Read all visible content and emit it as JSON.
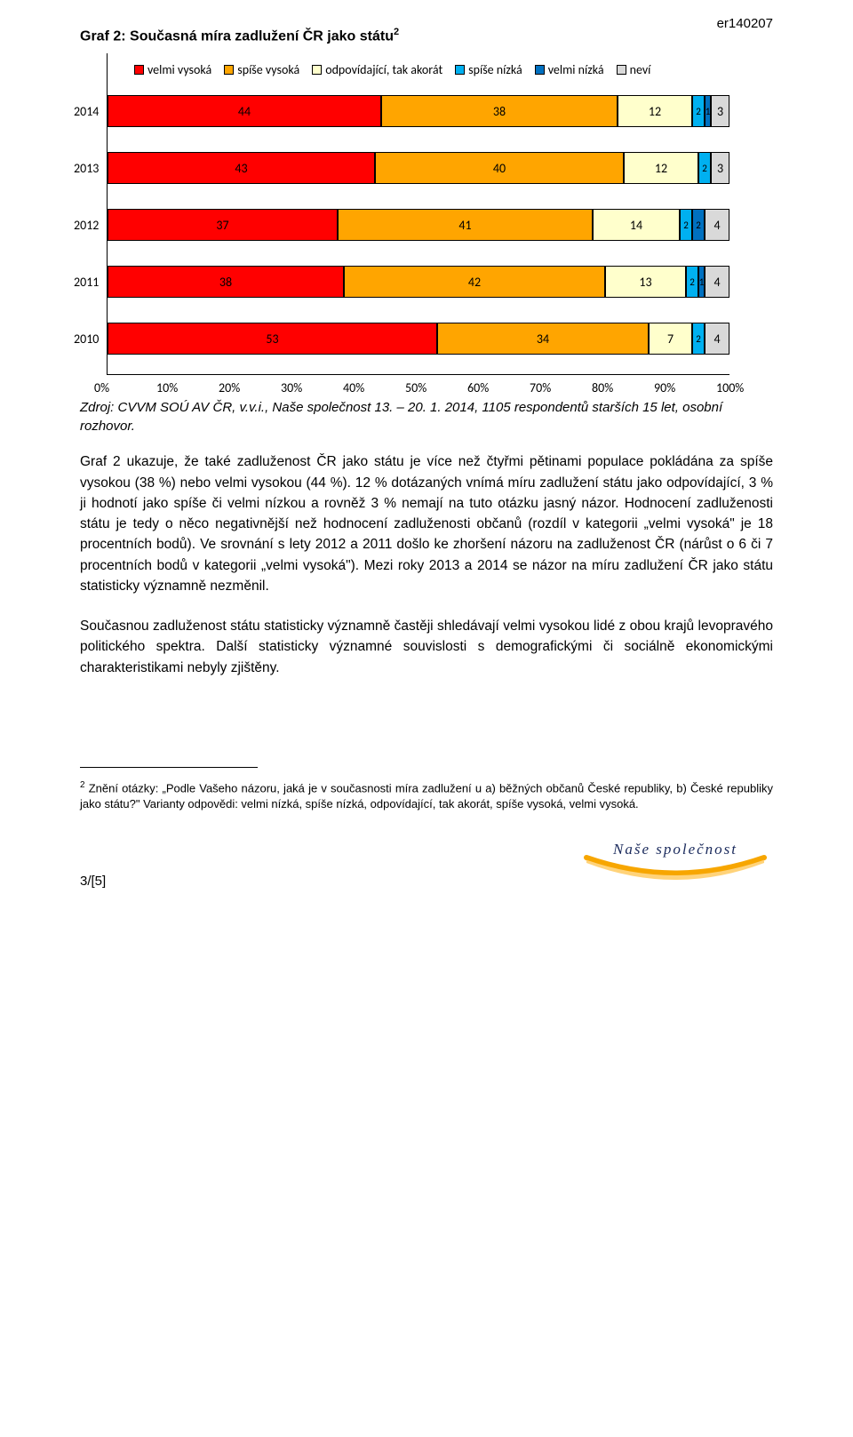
{
  "doc_id": "er140207",
  "chart": {
    "title": "Graf 2: Současná míra zadlužení ČR jako státu",
    "title_sup": "2",
    "legend": [
      {
        "label": "velmi vysoká",
        "color": "#ff0000"
      },
      {
        "label": "spíše vysoká",
        "color": "#ffa500"
      },
      {
        "label": "odpovídající, tak akorát",
        "color": "#ffffcc"
      },
      {
        "label": "spíše nízká",
        "color": "#00b0f0"
      },
      {
        "label": "velmi nízká",
        "color": "#0070c0"
      },
      {
        "label": "neví",
        "color": "#d9d9d9"
      }
    ],
    "years": [
      "2014",
      "2013",
      "2012",
      "2011",
      "2010"
    ],
    "data": [
      [
        44,
        38,
        12,
        2,
        1,
        3
      ],
      [
        43,
        40,
        12,
        2,
        0,
        3
      ],
      [
        37,
        41,
        14,
        2,
        2,
        4
      ],
      [
        38,
        42,
        13,
        2,
        1,
        4
      ],
      [
        53,
        34,
        7,
        2,
        0,
        4
      ]
    ],
    "data_labels": [
      [
        "44",
        "38",
        "12",
        "2",
        "1",
        "3"
      ],
      [
        "43",
        "40",
        "12",
        "2",
        "0",
        "3"
      ],
      [
        "37",
        "41",
        "14",
        "2",
        "2",
        "4"
      ],
      [
        "38",
        "42",
        "13",
        "2",
        "1",
        "4"
      ],
      [
        "53",
        "34",
        "7",
        "2",
        "0",
        "4"
      ]
    ],
    "xticks": [
      "0%",
      "10%",
      "20%",
      "30%",
      "40%",
      "50%",
      "60%",
      "70%",
      "80%",
      "90%",
      "100%"
    ]
  },
  "source": "Zdroj: CVVM SOÚ AV ČR, v.v.i., Naše společnost 13. – 20. 1. 2014, 1105 respondentů starších 15 let, osobní rozhovor.",
  "paragraphs": [
    "Graf 2 ukazuje, že také zadluženost ČR jako státu je více než čtyřmi pětinami populace pokládána za spíše vysokou (38 %) nebo velmi vysokou (44 %). 12 % dotázaných vnímá míru zadlužení státu jako odpovídající, 3 % ji hodnotí jako spíše či velmi nízkou a rovněž 3 % nemají na tuto otázku jasný názor. Hodnocení zadluženosti státu je tedy o něco negativnější než hodnocení zadluženosti občanů (rozdíl v kategorii „velmi vysoká\" je 18 procentních bodů). Ve srovnání s lety 2012 a 2011 došlo ke zhoršení názoru na zadluženost ČR (nárůst o 6 či 7 procentních bodů v kategorii „velmi vysoká\"). Mezi roky 2013 a 2014 se názor na míru zadlužení ČR jako státu statisticky významně nezměnil.",
    "Současnou zadluženost státu statisticky významně častěji shledávají velmi vysokou lidé z obou krajů levopravého politického spektra. Další statisticky významné souvislosti s demografickými či sociálně ekonomickými charakteristikami nebyly zjištěny."
  ],
  "footnote": {
    "num": "2",
    "text": "Znění otázky: „Podle Vašeho názoru, jaká je v současnosti míra zadlužení u a) běžných občanů České republiky, b) České republiky jako státu?\" Varianty odpovědi: velmi nízká, spíše nízká, odpovídající, tak akorát, spíše vysoká, velmi vysoká."
  },
  "pagenum": "3/[5]",
  "logo_text": "Naše společnost",
  "logo_color1": "#f7a600",
  "logo_color2": "#f7a600"
}
